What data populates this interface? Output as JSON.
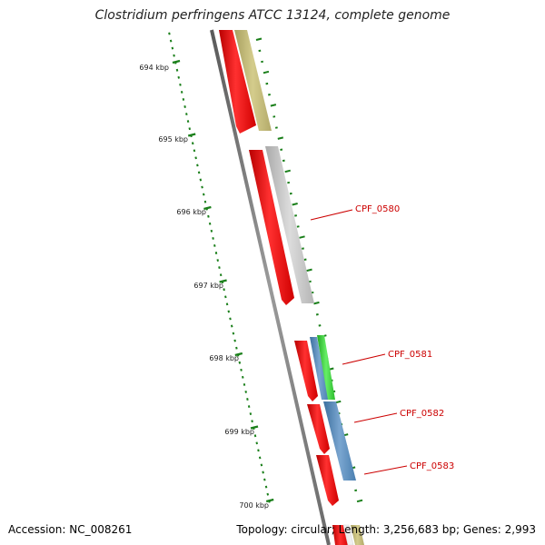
{
  "title": "Clostridium perfringens ATCC 13124, complete genome",
  "accession": "Accession: NC_008261",
  "summary": "Topology: circular; Length: 3,256,683 bp; Genes: 2,993",
  "ruler": {
    "unit": "kbp",
    "ticks": [
      {
        "kbp": 694,
        "label": "694 kbp"
      },
      {
        "kbp": 695,
        "label": "695 kbp"
      },
      {
        "kbp": 696,
        "label": "696 kbp"
      },
      {
        "kbp": 697,
        "label": "697 kbp"
      },
      {
        "kbp": 698,
        "label": "698 kbp"
      },
      {
        "kbp": 699,
        "label": "699 kbp"
      },
      {
        "kbp": 700,
        "label": "700 kbp"
      }
    ]
  },
  "genes": [
    {
      "label": "CPF_0580"
    },
    {
      "label": "CPF_0581"
    },
    {
      "label": "CPF_0582"
    },
    {
      "label": "CPF_0583"
    }
  ],
  "colors": {
    "backbone": "#7d7d7d",
    "orf": "#ee1111",
    "tick": "#1a7f1a",
    "label": "#cc0000",
    "olive": "#b8b070",
    "gray": "#c4c4c4",
    "blue": "#4f86b8",
    "green": "#33cc33"
  }
}
